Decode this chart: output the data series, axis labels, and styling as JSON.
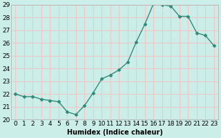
{
  "x": [
    0,
    1,
    2,
    3,
    4,
    5,
    6,
    7,
    8,
    9,
    10,
    11,
    12,
    13,
    14,
    15,
    16,
    17,
    18,
    19,
    20,
    21,
    22,
    23
  ],
  "y": [
    22.0,
    21.8,
    21.8,
    21.6,
    21.5,
    21.4,
    20.6,
    20.4,
    21.1,
    22.1,
    23.2,
    23.5,
    23.9,
    24.5,
    26.1,
    27.5,
    29.1,
    29.0,
    28.9,
    28.1,
    28.1,
    26.8,
    26.6,
    25.8
  ],
  "xlabel": "Humidex (Indice chaleur)",
  "ylim": [
    20,
    29
  ],
  "xlim_min": -0.5,
  "xlim_max": 23.5,
  "yticks": [
    20,
    21,
    22,
    23,
    24,
    25,
    26,
    27,
    28,
    29
  ],
  "xticks": [
    0,
    1,
    2,
    3,
    4,
    5,
    6,
    7,
    8,
    9,
    10,
    11,
    12,
    13,
    14,
    15,
    16,
    17,
    18,
    19,
    20,
    21,
    22,
    23
  ],
  "line_color": "#2e8b7a",
  "marker": "D",
  "marker_size": 2.5,
  "bg_color": "#cceee8",
  "grid_color": "#f0c8c8",
  "spine_color": "#aaaaaa",
  "font_size": 6.5,
  "xlabel_fontsize": 7,
  "linewidth": 1.0
}
